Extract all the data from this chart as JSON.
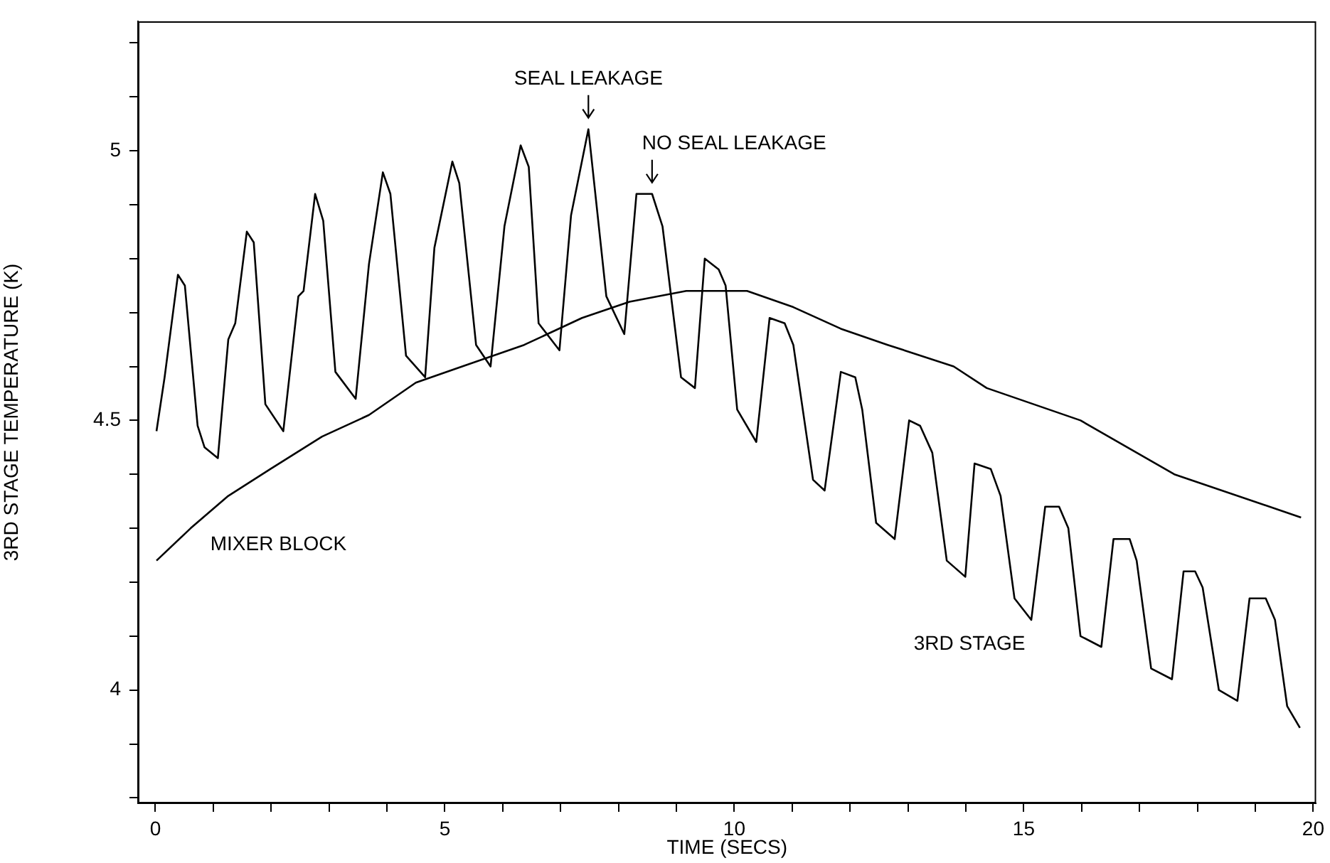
{
  "chart_data": {
    "type": "line",
    "xlabel": "TIME (SECS)",
    "ylabel": "3RD STAGE TEMPERATURE (K)",
    "xlim": [
      -0.3,
      20.05
    ],
    "ylim": [
      3.79,
      5.24
    ],
    "xticks": [
      0,
      {
        "value": 1,
        "label": null
      },
      {
        "value": 2,
        "label": null
      },
      {
        "value": 3,
        "label": null
      },
      {
        "value": 4,
        "label": null
      },
      5,
      {
        "value": 6,
        "label": null
      },
      {
        "value": 7,
        "label": null
      },
      {
        "value": 8,
        "label": null
      },
      {
        "value": 9,
        "label": null
      },
      10,
      {
        "value": 11,
        "label": null
      },
      {
        "value": 12,
        "label": null
      },
      {
        "value": 13,
        "label": null
      },
      {
        "value": 14,
        "label": null
      },
      15,
      {
        "value": 16,
        "label": null
      },
      {
        "value": 17,
        "label": null
      },
      {
        "value": 18,
        "label": null
      },
      {
        "value": 19,
        "label": null
      },
      20
    ],
    "yticks": [
      {
        "value": 3.8,
        "label": null
      },
      {
        "value": 3.9,
        "label": null
      },
      4,
      {
        "value": 4.1,
        "label": null
      },
      {
        "value": 4.2,
        "label": null
      },
      {
        "value": 4.3,
        "label": null
      },
      {
        "value": 4.4,
        "label": null
      },
      4.5,
      {
        "value": 4.6,
        "label": null
      },
      {
        "value": 4.7,
        "label": null
      },
      {
        "value": 4.8,
        "label": null
      },
      {
        "value": 4.9,
        "label": null
      },
      5,
      {
        "value": 5.1,
        "label": null
      },
      {
        "value": 5.2,
        "label": null
      }
    ],
    "grid": false,
    "legend": false,
    "marker": "none",
    "line_style": "solid",
    "series": [
      {
        "name": "3RD STAGE",
        "color": "#000000",
        "x": [
          0.02,
          0.16,
          0.39,
          0.51,
          0.73,
          0.85,
          1.08,
          1.26,
          1.38,
          1.58,
          1.7,
          1.9,
          2.21,
          2.47,
          2.56,
          2.76,
          2.9,
          3.11,
          3.46,
          3.69,
          3.93,
          4.06,
          4.33,
          4.66,
          4.82,
          5.13,
          5.25,
          5.54,
          5.79,
          6.03,
          6.31,
          6.45,
          6.62,
          6.98,
          7.18,
          7.48,
          7.79,
          8.1,
          8.31,
          8.44,
          8.58,
          8.76,
          9.08,
          9.32,
          9.49,
          9.73,
          9.85,
          10.05,
          10.38,
          10.61,
          10.87,
          11.02,
          11.36,
          11.56,
          11.84,
          12.09,
          12.21,
          12.45,
          12.77,
          13.02,
          13.21,
          13.42,
          13.67,
          13.99,
          14.15,
          14.43,
          14.6,
          14.84,
          15.13,
          15.37,
          15.61,
          15.77,
          15.98,
          16.34,
          16.55,
          16.83,
          16.95,
          17.2,
          17.56,
          17.76,
          17.96,
          18.09,
          18.37,
          18.69,
          18.9,
          19.18,
          19.34,
          19.55,
          19.77
        ],
        "values": [
          4.48,
          4.58,
          4.77,
          4.75,
          4.49,
          4.45,
          4.43,
          4.65,
          4.68,
          4.85,
          4.83,
          4.53,
          4.48,
          4.73,
          4.74,
          4.92,
          4.87,
          4.59,
          4.54,
          4.79,
          4.96,
          4.92,
          4.62,
          4.58,
          4.82,
          4.98,
          4.94,
          4.64,
          4.6,
          4.86,
          5.01,
          4.97,
          4.68,
          4.63,
          4.88,
          5.04,
          4.73,
          4.66,
          4.92,
          4.92,
          4.92,
          4.86,
          4.58,
          4.56,
          4.8,
          4.78,
          4.75,
          4.52,
          4.46,
          4.69,
          4.68,
          4.64,
          4.39,
          4.37,
          4.59,
          4.58,
          4.52,
          4.31,
          4.28,
          4.5,
          4.49,
          4.44,
          4.24,
          4.21,
          4.42,
          4.41,
          4.36,
          4.17,
          4.13,
          4.34,
          4.34,
          4.3,
          4.1,
          4.08,
          4.28,
          4.28,
          4.24,
          4.04,
          4.02,
          4.22,
          4.22,
          4.19,
          4.0,
          3.98,
          4.17,
          4.17,
          4.13,
          3.97,
          3.93
        ]
      },
      {
        "name": "MIXER BLOCK",
        "color": "#000000",
        "x": [
          0.02,
          0.61,
          1.26,
          1.99,
          2.88,
          3.69,
          4.5,
          5.3,
          6.37,
          7.37,
          8.19,
          9.17,
          10.22,
          11.02,
          11.84,
          12.65,
          13.79,
          14.36,
          15.98,
          17.6,
          19.79
        ],
        "values": [
          4.24,
          4.3,
          4.36,
          4.41,
          4.47,
          4.51,
          4.57,
          4.6,
          4.64,
          4.69,
          4.72,
          4.74,
          4.74,
          4.71,
          4.67,
          4.64,
          4.6,
          4.56,
          4.5,
          4.4,
          4.32
        ]
      }
    ],
    "annotations": [
      {
        "text": "SEAL LEAKAGE",
        "x": 7.48,
        "y": 5.04
      },
      {
        "text": "NO SEAL LEAKAGE",
        "x": 8.58,
        "y": 4.92
      }
    ]
  }
}
